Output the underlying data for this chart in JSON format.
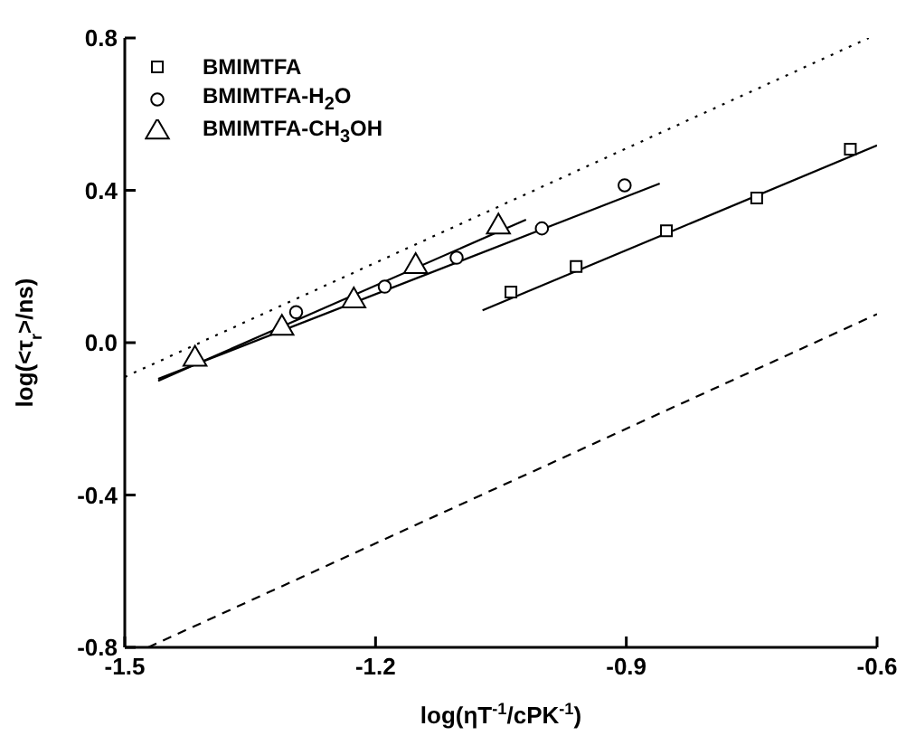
{
  "chart_data": {
    "type": "scatter",
    "xlabel": "log(ηT$^{-1}$/cPK$^{-1}$)",
    "ylabel": "log(<τ$_{r}$>/ns)",
    "xlim": [
      -1.5,
      -0.6
    ],
    "xticks": [
      -1.5,
      -1.2,
      -0.9,
      -0.6
    ],
    "ylim": [
      -0.8,
      0.8
    ],
    "yticks": [
      -0.8,
      -0.4,
      {
        "value": 0,
        "label": "0.0"
      },
      0.4,
      0.8
    ],
    "grid": false,
    "legend": "top left",
    "series": [
      {
        "name": "BMIMTFA",
        "marker": "square",
        "color": "#000000",
        "x": [
          -1.038,
          -0.96,
          -0.852,
          -0.744,
          -0.632
        ],
        "values": [
          0.133,
          0.2,
          0.294,
          0.38,
          0.508
        ]
      },
      {
        "name": "BMIMTFA-H$_{2}$O",
        "marker": "circle",
        "color": "#000000",
        "x": [
          -1.295,
          -1.189,
          -1.103,
          -1.001,
          -0.902
        ],
        "values": [
          0.08,
          0.147,
          0.223,
          0.3,
          0.413
        ]
      },
      {
        "name": "BMIMTFA-CH$_{3}$OH",
        "marker": "triangle",
        "color": "#000000",
        "x": [
          -1.416,
          -1.312,
          -1.226,
          -1.152,
          -1.053
        ],
        "values": [
          -0.043,
          0.038,
          0.11,
          0.2,
          0.304
        ]
      },
      {
        "type": "line",
        "marker": "none",
        "line_style": "solid",
        "color": "#000000",
        "x": [
          -1.072,
          -0.6
        ],
        "values": [
          0.085,
          0.518
        ]
      },
      {
        "type": "line",
        "marker": "none",
        "line_style": "solid",
        "color": "#000000",
        "x": [
          -1.46,
          -0.86
        ],
        "values": [
          -0.095,
          0.418
        ]
      },
      {
        "type": "line",
        "marker": "none",
        "line_style": "solid",
        "color": "#000000",
        "x": [
          -1.46,
          -1.02
        ],
        "values": [
          -0.1,
          0.323
        ]
      },
      {
        "type": "line",
        "marker": "none",
        "line_style": "dotted",
        "color": "#000000",
        "x": [
          -1.5,
          -0.61
        ],
        "values": [
          -0.09,
          0.8
        ]
      },
      {
        "type": "line",
        "marker": "none",
        "line_style": "dashed",
        "color": "#000000",
        "x": [
          -1.472,
          -0.6
        ],
        "values": [
          -0.8,
          0.075
        ]
      }
    ]
  }
}
